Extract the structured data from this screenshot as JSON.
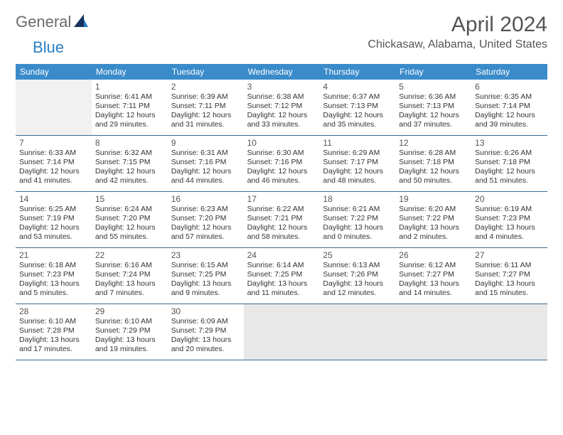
{
  "brand": {
    "part1": "General",
    "part2": "Blue"
  },
  "title": "April 2024",
  "location": "Chickasaw, Alabama, United States",
  "colors": {
    "header_bg": "#3a8bca",
    "header_text": "#ffffff",
    "row_divider": "#3a6a8f",
    "text": "#333333",
    "muted_text": "#555555",
    "empty_leading_bg": "#f1f1f1",
    "empty_trailing_bg": "#e8e8e8",
    "brand_gray": "#6b6b6b",
    "brand_blue": "#2a7fc4"
  },
  "typography": {
    "title_fontsize": 30,
    "location_fontsize": 16,
    "dow_fontsize": 12,
    "daynum_fontsize": 12,
    "body_fontsize": 10.5
  },
  "layout": {
    "cols": 7,
    "rows": 5,
    "leading_empty": 1,
    "trailing_empty": 4
  },
  "dow": [
    "Sunday",
    "Monday",
    "Tuesday",
    "Wednesday",
    "Thursday",
    "Friday",
    "Saturday"
  ],
  "days": [
    {
      "n": "1",
      "sr": "Sunrise: 6:41 AM",
      "ss": "Sunset: 7:11 PM",
      "d1": "Daylight: 12 hours",
      "d2": "and 29 minutes."
    },
    {
      "n": "2",
      "sr": "Sunrise: 6:39 AM",
      "ss": "Sunset: 7:11 PM",
      "d1": "Daylight: 12 hours",
      "d2": "and 31 minutes."
    },
    {
      "n": "3",
      "sr": "Sunrise: 6:38 AM",
      "ss": "Sunset: 7:12 PM",
      "d1": "Daylight: 12 hours",
      "d2": "and 33 minutes."
    },
    {
      "n": "4",
      "sr": "Sunrise: 6:37 AM",
      "ss": "Sunset: 7:13 PM",
      "d1": "Daylight: 12 hours",
      "d2": "and 35 minutes."
    },
    {
      "n": "5",
      "sr": "Sunrise: 6:36 AM",
      "ss": "Sunset: 7:13 PM",
      "d1": "Daylight: 12 hours",
      "d2": "and 37 minutes."
    },
    {
      "n": "6",
      "sr": "Sunrise: 6:35 AM",
      "ss": "Sunset: 7:14 PM",
      "d1": "Daylight: 12 hours",
      "d2": "and 39 minutes."
    },
    {
      "n": "7",
      "sr": "Sunrise: 6:33 AM",
      "ss": "Sunset: 7:14 PM",
      "d1": "Daylight: 12 hours",
      "d2": "and 41 minutes."
    },
    {
      "n": "8",
      "sr": "Sunrise: 6:32 AM",
      "ss": "Sunset: 7:15 PM",
      "d1": "Daylight: 12 hours",
      "d2": "and 42 minutes."
    },
    {
      "n": "9",
      "sr": "Sunrise: 6:31 AM",
      "ss": "Sunset: 7:16 PM",
      "d1": "Daylight: 12 hours",
      "d2": "and 44 minutes."
    },
    {
      "n": "10",
      "sr": "Sunrise: 6:30 AM",
      "ss": "Sunset: 7:16 PM",
      "d1": "Daylight: 12 hours",
      "d2": "and 46 minutes."
    },
    {
      "n": "11",
      "sr": "Sunrise: 6:29 AM",
      "ss": "Sunset: 7:17 PM",
      "d1": "Daylight: 12 hours",
      "d2": "and 48 minutes."
    },
    {
      "n": "12",
      "sr": "Sunrise: 6:28 AM",
      "ss": "Sunset: 7:18 PM",
      "d1": "Daylight: 12 hours",
      "d2": "and 50 minutes."
    },
    {
      "n": "13",
      "sr": "Sunrise: 6:26 AM",
      "ss": "Sunset: 7:18 PM",
      "d1": "Daylight: 12 hours",
      "d2": "and 51 minutes."
    },
    {
      "n": "14",
      "sr": "Sunrise: 6:25 AM",
      "ss": "Sunset: 7:19 PM",
      "d1": "Daylight: 12 hours",
      "d2": "and 53 minutes."
    },
    {
      "n": "15",
      "sr": "Sunrise: 6:24 AM",
      "ss": "Sunset: 7:20 PM",
      "d1": "Daylight: 12 hours",
      "d2": "and 55 minutes."
    },
    {
      "n": "16",
      "sr": "Sunrise: 6:23 AM",
      "ss": "Sunset: 7:20 PM",
      "d1": "Daylight: 12 hours",
      "d2": "and 57 minutes."
    },
    {
      "n": "17",
      "sr": "Sunrise: 6:22 AM",
      "ss": "Sunset: 7:21 PM",
      "d1": "Daylight: 12 hours",
      "d2": "and 58 minutes."
    },
    {
      "n": "18",
      "sr": "Sunrise: 6:21 AM",
      "ss": "Sunset: 7:22 PM",
      "d1": "Daylight: 13 hours",
      "d2": "and 0 minutes."
    },
    {
      "n": "19",
      "sr": "Sunrise: 6:20 AM",
      "ss": "Sunset: 7:22 PM",
      "d1": "Daylight: 13 hours",
      "d2": "and 2 minutes."
    },
    {
      "n": "20",
      "sr": "Sunrise: 6:19 AM",
      "ss": "Sunset: 7:23 PM",
      "d1": "Daylight: 13 hours",
      "d2": "and 4 minutes."
    },
    {
      "n": "21",
      "sr": "Sunrise: 6:18 AM",
      "ss": "Sunset: 7:23 PM",
      "d1": "Daylight: 13 hours",
      "d2": "and 5 minutes."
    },
    {
      "n": "22",
      "sr": "Sunrise: 6:16 AM",
      "ss": "Sunset: 7:24 PM",
      "d1": "Daylight: 13 hours",
      "d2": "and 7 minutes."
    },
    {
      "n": "23",
      "sr": "Sunrise: 6:15 AM",
      "ss": "Sunset: 7:25 PM",
      "d1": "Daylight: 13 hours",
      "d2": "and 9 minutes."
    },
    {
      "n": "24",
      "sr": "Sunrise: 6:14 AM",
      "ss": "Sunset: 7:25 PM",
      "d1": "Daylight: 13 hours",
      "d2": "and 11 minutes."
    },
    {
      "n": "25",
      "sr": "Sunrise: 6:13 AM",
      "ss": "Sunset: 7:26 PM",
      "d1": "Daylight: 13 hours",
      "d2": "and 12 minutes."
    },
    {
      "n": "26",
      "sr": "Sunrise: 6:12 AM",
      "ss": "Sunset: 7:27 PM",
      "d1": "Daylight: 13 hours",
      "d2": "and 14 minutes."
    },
    {
      "n": "27",
      "sr": "Sunrise: 6:11 AM",
      "ss": "Sunset: 7:27 PM",
      "d1": "Daylight: 13 hours",
      "d2": "and 15 minutes."
    },
    {
      "n": "28",
      "sr": "Sunrise: 6:10 AM",
      "ss": "Sunset: 7:28 PM",
      "d1": "Daylight: 13 hours",
      "d2": "and 17 minutes."
    },
    {
      "n": "29",
      "sr": "Sunrise: 6:10 AM",
      "ss": "Sunset: 7:29 PM",
      "d1": "Daylight: 13 hours",
      "d2": "and 19 minutes."
    },
    {
      "n": "30",
      "sr": "Sunrise: 6:09 AM",
      "ss": "Sunset: 7:29 PM",
      "d1": "Daylight: 13 hours",
      "d2": "and 20 minutes."
    }
  ]
}
